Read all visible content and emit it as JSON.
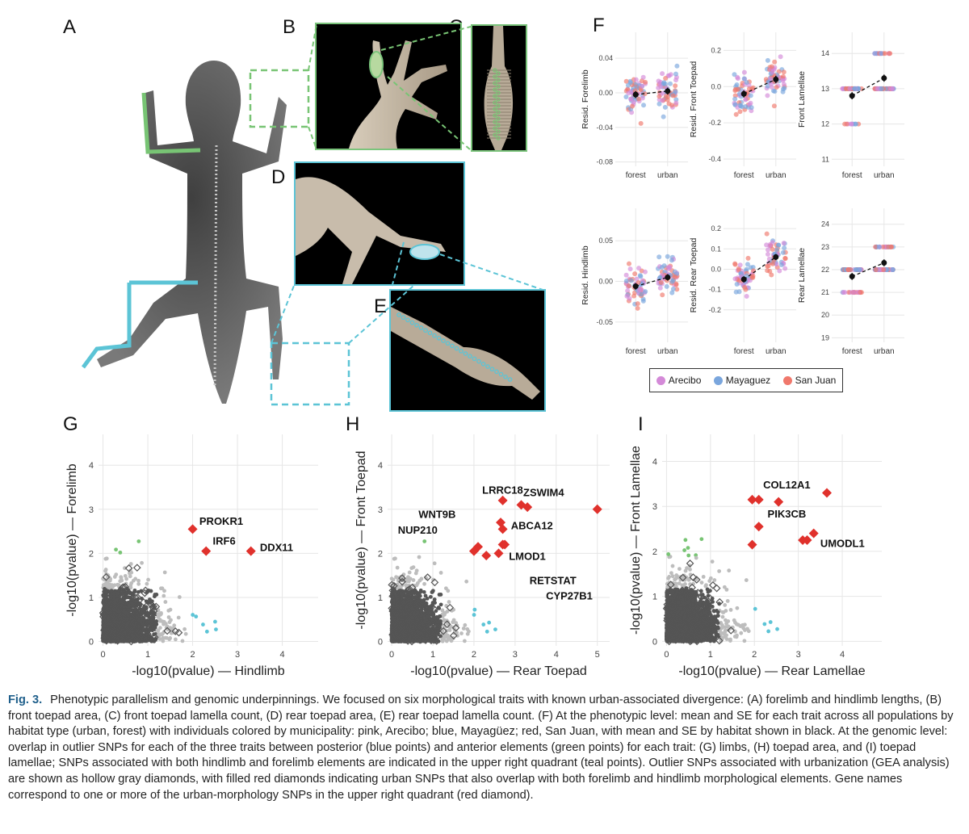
{
  "panel_letters": {
    "A": "A",
    "B": "B",
    "C": "C",
    "D": "D",
    "E": "E",
    "F": "F",
    "G": "G",
    "H": "H",
    "I": "I"
  },
  "colors": {
    "green": "#78c474",
    "blue": "#5cc4d6",
    "teal": "#9ed9c8",
    "gray_light": "#bdbdbd",
    "gray_dark": "#555555",
    "red": "#e0312c",
    "pink": "#d48ad8",
    "mayaguez_blue": "#7aa6dd",
    "sanjuan_red": "#f0786c"
  },
  "legend": {
    "items": [
      {
        "label": "Arecibo",
        "color": "#d48ad8"
      },
      {
        "label": "Mayaguez",
        "color": "#7aa6dd"
      },
      {
        "label": "San Juan",
        "color": "#f0786c"
      }
    ]
  },
  "chart_data": [
    {
      "id": "F1",
      "type": "scatter",
      "ylabel": "Resid. Forelimb",
      "categories": [
        "forest",
        "urban"
      ],
      "ylim": [
        -0.085,
        0.07
      ],
      "yticks": [
        -0.08,
        -0.04,
        0.0,
        0.04
      ],
      "ytick_labels": [
        "-0.08",
        "-0.04",
        "0.00",
        "0.04"
      ],
      "means": [
        -0.002,
        0.002
      ],
      "se": [
        0.004,
        0.004
      ],
      "spread": 0.075
    },
    {
      "id": "F2",
      "type": "scatter",
      "ylabel": "Resid. Front Toepad",
      "categories": [
        "forest",
        "urban"
      ],
      "ylim": [
        -0.44,
        0.3
      ],
      "yticks": [
        -0.4,
        -0.2,
        0.0,
        0.2
      ],
      "ytick_labels": [
        "-0.4",
        "-0.2",
        "0.0",
        "0.2"
      ],
      "means": [
        -0.04,
        0.04
      ],
      "se": [
        0.02,
        0.02
      ],
      "spread": 0.3
    },
    {
      "id": "F3",
      "type": "scatter",
      "ylabel": "Front Lamellae",
      "categories": [
        "forest",
        "urban"
      ],
      "ylim": [
        10.8,
        14.6
      ],
      "yticks": [
        11,
        12,
        13,
        14
      ],
      "ytick_labels": [
        "11",
        "12",
        "13",
        "14"
      ],
      "means": [
        12.8,
        13.3
      ],
      "se": [
        0.1,
        0.1
      ],
      "spread": 1.6,
      "integer": true
    },
    {
      "id": "F4",
      "type": "scatter",
      "ylabel": "Resid. Hindlimb",
      "categories": [
        "forest",
        "urban"
      ],
      "ylim": [
        -0.075,
        0.09
      ],
      "yticks": [
        -0.05,
        0.0,
        0.05
      ],
      "ytick_labels": [
        "-0.05",
        "0.00",
        "0.05"
      ],
      "means": [
        -0.006,
        0.005
      ],
      "se": [
        0.004,
        0.004
      ],
      "spread": 0.07
    },
    {
      "id": "F5",
      "type": "scatter",
      "ylabel": "Resid. Rear Toepad",
      "categories": [
        "forest",
        "urban"
      ],
      "ylim": [
        -0.36,
        0.3
      ],
      "yticks": [
        -0.2,
        -0.1,
        0.0,
        0.1,
        0.2
      ],
      "ytick_labels": [
        "-0.2",
        "-0.1",
        "0.0",
        "0.1",
        "0.2"
      ],
      "means": [
        -0.05,
        0.06
      ],
      "se": [
        0.015,
        0.015
      ],
      "spread": 0.25
    },
    {
      "id": "F6",
      "type": "scatter",
      "ylabel": "Rear Lamellae",
      "categories": [
        "forest",
        "urban"
      ],
      "ylim": [
        18.8,
        24.7
      ],
      "yticks": [
        19,
        20,
        21,
        22,
        23,
        24
      ],
      "ytick_labels": [
        "19",
        "20",
        "21",
        "22",
        "23",
        "24"
      ],
      "means": [
        21.7,
        22.3
      ],
      "se": [
        0.15,
        0.15
      ],
      "spread": 2.0,
      "integer": true
    },
    {
      "id": "G",
      "type": "scatter",
      "xlabel": "-log10(pvalue) — Hindlimb",
      "ylabel": "-log10(pvalue) — Forelimb",
      "xlim": [
        -0.1,
        4.8
      ],
      "ylim": [
        -0.1,
        4.7
      ],
      "xticks": [
        0,
        1,
        2,
        3,
        4
      ],
      "yticks": [
        0,
        1,
        2,
        3,
        4
      ],
      "threshold": [
        2,
        2
      ],
      "red_points": [
        [
          2.0,
          2.55
        ],
        [
          2.3,
          2.05
        ],
        [
          3.3,
          2.05
        ]
      ],
      "genes": [
        {
          "name": "PROKR1",
          "x": 2.15,
          "y": 2.65
        },
        {
          "name": "IRF6",
          "x": 2.45,
          "y": 2.2
        },
        {
          "name": "DDX11",
          "x": 3.5,
          "y": 2.05
        }
      ]
    },
    {
      "id": "H",
      "type": "scatter",
      "xlabel": "-log10(pvalue) — Rear Toepad",
      "ylabel": "-log10(pvalue) — Front Toepad",
      "xlim": [
        -0.1,
        5.3
      ],
      "ylim": [
        -0.1,
        4.7
      ],
      "xticks": [
        0,
        1,
        2,
        3,
        4,
        5
      ],
      "yticks": [
        0,
        1,
        2,
        3,
        4
      ],
      "threshold": [
        2,
        2
      ],
      "red_points": [
        [
          2.7,
          3.2
        ],
        [
          3.15,
          3.1
        ],
        [
          3.3,
          3.05
        ],
        [
          2.65,
          2.7
        ],
        [
          2.7,
          2.55
        ],
        [
          2.7,
          2.2
        ],
        [
          2.75,
          2.2
        ],
        [
          2.1,
          2.15
        ],
        [
          2.0,
          2.05
        ],
        [
          2.3,
          1.95
        ],
        [
          2.6,
          2.0
        ],
        [
          5.0,
          3.0
        ]
      ],
      "genes": [
        {
          "name": "LRRC18",
          "x": 2.2,
          "y": 3.35
        },
        {
          "name": "ZSWIM4",
          "x": 3.2,
          "y": 3.3
        },
        {
          "name": "WNT9B",
          "x": 0.65,
          "y": 2.8
        },
        {
          "name": "ABCA12",
          "x": 2.9,
          "y": 2.55
        },
        {
          "name": "NUP210",
          "x": 0.15,
          "y": 2.45
        },
        {
          "name": "LMOD1",
          "x": 2.85,
          "y": 1.85
        },
        {
          "name": "RETSTAT",
          "x": 3.35,
          "y": 1.3
        },
        {
          "name": "CYP27B1",
          "x": 3.75,
          "y": 0.95
        }
      ]
    },
    {
      "id": "I",
      "type": "scatter",
      "xlabel": "-log10(pvalue) — Rear Lamellae",
      "ylabel": "-log10(pvalue) — Front Lamellae",
      "xlim": [
        -0.1,
        4.9
      ],
      "ylim": [
        -0.1,
        4.6
      ],
      "xticks": [
        0,
        1,
        2,
        3,
        4
      ],
      "yticks": [
        0,
        1,
        2,
        3,
        4
      ],
      "threshold": [
        1.9,
        1.9
      ],
      "red_points": [
        [
          1.95,
          3.15
        ],
        [
          2.1,
          3.15
        ],
        [
          2.55,
          3.1
        ],
        [
          3.65,
          3.3
        ],
        [
          2.1,
          2.55
        ],
        [
          1.95,
          2.15
        ],
        [
          3.1,
          2.25
        ],
        [
          3.35,
          2.4
        ],
        [
          3.2,
          2.25
        ]
      ],
      "genes": [
        {
          "name": "COL12A1",
          "x": 2.2,
          "y": 3.4
        },
        {
          "name": "PIK3CB",
          "x": 2.3,
          "y": 2.75
        },
        {
          "name": "UMODL1",
          "x": 3.5,
          "y": 2.1
        }
      ]
    }
  ],
  "caption": {
    "label": "Fig. 3.",
    "text": "Phenotypic parallelism and genomic underpinnings. We focused on six morphological traits with known urban-associated divergence: (A) forelimb and hindlimb lengths, (B) front toepad area, (C) front toepad lamella count, (D) rear toepad area, (E) rear toepad lamella count. (F) At the phenotypic level: mean and SE for each trait across all populations by habitat type (urban, forest) with individuals colored by municipality: pink, Arecibo; blue, Mayagüez; red, San Juan, with mean and SE by habitat shown in black. At the genomic level: overlap in outlier SNPs for each of the three traits between posterior (blue points) and anterior elements (green points) for each trait: (G) limbs, (H) toepad area, and (I) toepad lamellae; SNPs associated with both hindlimb and forelimb elements are indicated in the upper right quadrant (teal points). Outlier SNPs associated with urbanization (GEA analysis) are shown as hollow gray diamonds, with filled red diamonds indicating urban SNPs that also overlap with both forelimb and hindlimb morphological elements. Gene names correspond to one or more of the urban-morphology SNPs in the upper right quadrant (red diamond)."
  }
}
